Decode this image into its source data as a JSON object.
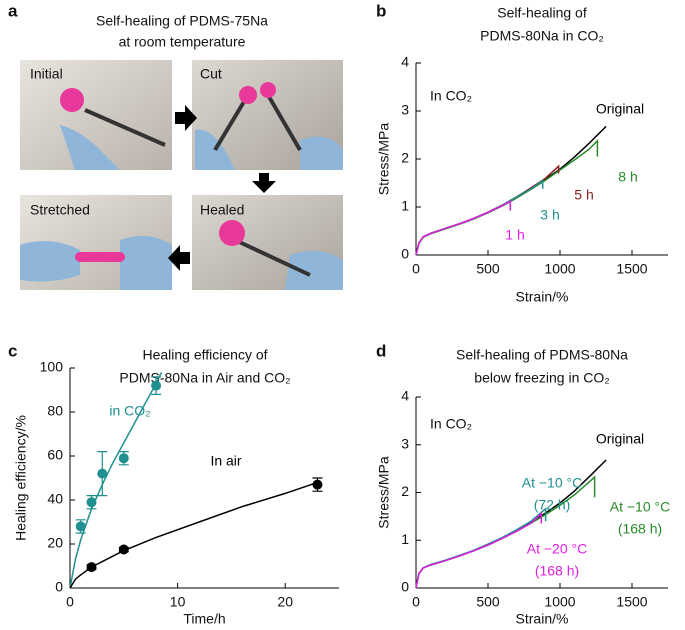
{
  "panel_a": {
    "panel_label": "a",
    "title": [
      "Self-healing of PDMS-75Na",
      "at room temperature"
    ],
    "photos": [
      "Initial",
      "Cut",
      "Stretched",
      "Healed"
    ]
  },
  "chart_data": [
    {
      "type": "line",
      "panel_label": "b",
      "title": [
        "Self-healing of",
        "PDMS-80Na in CO₂"
      ],
      "annotation": "In CO₂",
      "x_label": "Strain/%",
      "y_label": "Stress/MPa",
      "xlim": [
        0,
        1750
      ],
      "ylim": [
        0,
        4
      ],
      "xticks": [
        0,
        500,
        1000,
        1500
      ],
      "yticks": [
        0,
        1,
        2,
        3,
        4
      ],
      "series": [
        {
          "label": [
            "Original"
          ],
          "color": "#000000",
          "x": [
            0,
            20,
            50,
            100,
            200,
            300,
            400,
            500,
            600,
            700,
            800,
            900,
            1000,
            1100,
            1200,
            1320
          ],
          "values": [
            0,
            0.25,
            0.38,
            0.45,
            0.55,
            0.65,
            0.76,
            0.89,
            1.04,
            1.21,
            1.39,
            1.58,
            1.79,
            2.04,
            2.32,
            2.68
          ]
        },
        {
          "label": [
            "8 h"
          ],
          "color": "#2a8a2a",
          "x": [
            0,
            20,
            50,
            100,
            200,
            300,
            400,
            500,
            600,
            700,
            800,
            900,
            1000,
            1100,
            1200,
            1260,
            1260
          ],
          "values": [
            0,
            0.24,
            0.37,
            0.44,
            0.54,
            0.64,
            0.75,
            0.88,
            1.02,
            1.19,
            1.37,
            1.56,
            1.77,
            1.98,
            2.2,
            2.38,
            2.05
          ]
        },
        {
          "label": [
            "5 h"
          ],
          "color": "#8b1a1a",
          "x": [
            0,
            20,
            50,
            100,
            200,
            300,
            400,
            500,
            600,
            700,
            800,
            900,
            990,
            990
          ],
          "values": [
            0,
            0.25,
            0.38,
            0.45,
            0.55,
            0.65,
            0.76,
            0.89,
            1.04,
            1.21,
            1.4,
            1.6,
            1.85,
            1.7
          ]
        },
        {
          "label": [
            "3 h"
          ],
          "color": "#1f8f8f",
          "x": [
            0,
            20,
            50,
            100,
            200,
            300,
            400,
            500,
            600,
            700,
            800,
            880,
            880
          ],
          "values": [
            0,
            0.25,
            0.38,
            0.45,
            0.55,
            0.65,
            0.76,
            0.89,
            1.04,
            1.21,
            1.38,
            1.55,
            1.38
          ]
        },
        {
          "label": [
            "1 h"
          ],
          "color": "#e020e0",
          "x": [
            0,
            20,
            50,
            100,
            200,
            300,
            400,
            500,
            600,
            655,
            655
          ],
          "values": [
            0,
            0.25,
            0.38,
            0.45,
            0.55,
            0.65,
            0.76,
            0.89,
            1.03,
            1.12,
            0.92
          ]
        }
      ]
    },
    {
      "type": "scatter",
      "panel_label": "c",
      "title": [
        "Healing efficiency of",
        "PDMS-80Na in Air and CO₂"
      ],
      "x_label": "Time/h",
      "y_label": "Healing efficiency/%",
      "xlim": [
        0,
        25
      ],
      "ylim": [
        0,
        100
      ],
      "xticks": [
        0,
        10,
        20
      ],
      "yticks": [
        0,
        20,
        40,
        60,
        80,
        100
      ],
      "series": [
        {
          "label": [
            "in CO₂"
          ],
          "color": "#1f8f8f",
          "x": [
            1,
            2,
            3,
            5,
            8
          ],
          "values": [
            28,
            39,
            52,
            59,
            92
          ],
          "errors": [
            3,
            3,
            10,
            3,
            4
          ],
          "fit": {
            "x": [
              0,
              0.5,
              1,
              2,
              3,
              4,
              5,
              6,
              7,
              8,
              8.5
            ],
            "values": [
              0,
              13,
              22,
              36,
              47,
              57,
              66,
              75,
              84,
              93,
              98
            ]
          }
        },
        {
          "label": [
            "In air"
          ],
          "color": "#000000",
          "x": [
            2,
            5,
            23
          ],
          "values": [
            9.5,
            17.5,
            47
          ],
          "errors": [
            1,
            1,
            3
          ],
          "fit": {
            "x": [
              0,
              0.5,
              1,
              2,
              3,
              5,
              8,
              12,
              16,
              20,
              23
            ],
            "values": [
              0,
              4,
              6,
              9.5,
              12,
              17,
              23,
              30,
              37,
              43,
              48
            ]
          }
        }
      ]
    },
    {
      "type": "line",
      "panel_label": "d",
      "title": [
        "Self-healing of PDMS-80Na",
        "below freezing in CO₂"
      ],
      "annotation": "In CO₂",
      "x_label": "Strain/%",
      "y_label": "Stress/MPa",
      "xlim": [
        0,
        1750
      ],
      "ylim": [
        0,
        4
      ],
      "xticks": [
        0,
        500,
        1000,
        1500
      ],
      "yticks": [
        0,
        1,
        2,
        3,
        4
      ],
      "series": [
        {
          "label": [
            "Original"
          ],
          "color": "#000000",
          "x": [
            0,
            20,
            50,
            100,
            200,
            300,
            400,
            500,
            600,
            700,
            800,
            900,
            1000,
            1100,
            1200,
            1320
          ],
          "values": [
            0,
            0.3,
            0.42,
            0.48,
            0.57,
            0.67,
            0.78,
            0.9,
            1.04,
            1.2,
            1.38,
            1.57,
            1.78,
            2.03,
            2.32,
            2.68
          ]
        },
        {
          "label": [
            "At −10 °C",
            "(168 h)"
          ],
          "color": "#2a8a2a",
          "x": [
            0,
            20,
            50,
            100,
            200,
            300,
            400,
            500,
            600,
            700,
            800,
            900,
            1000,
            1100,
            1240,
            1240
          ],
          "values": [
            0,
            0.3,
            0.42,
            0.48,
            0.57,
            0.67,
            0.78,
            0.9,
            1.04,
            1.19,
            1.36,
            1.54,
            1.73,
            1.95,
            2.32,
            1.9
          ]
        },
        {
          "label": [
            "At −10 °C",
            "(72 h)"
          ],
          "color": "#1f8f8f",
          "x": [
            0,
            20,
            50,
            100,
            200,
            300,
            400,
            500,
            600,
            700,
            800,
            900,
            900
          ],
          "values": [
            0,
            0.3,
            0.42,
            0.49,
            0.58,
            0.68,
            0.79,
            0.92,
            1.06,
            1.22,
            1.4,
            1.66,
            1.4
          ]
        },
        {
          "label": [
            "At −20 °C",
            "(168 h)"
          ],
          "color": "#e020e0",
          "x": [
            0,
            20,
            50,
            100,
            200,
            300,
            400,
            500,
            600,
            700,
            800,
            870,
            870
          ],
          "values": [
            0,
            0.3,
            0.42,
            0.48,
            0.57,
            0.67,
            0.78,
            0.9,
            1.04,
            1.19,
            1.36,
            1.56,
            1.35
          ]
        }
      ]
    }
  ]
}
